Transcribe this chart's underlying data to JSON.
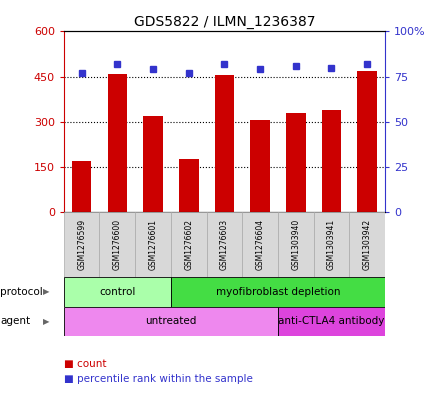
{
  "title": "GDS5822 / ILMN_1236387",
  "samples": [
    "GSM1276599",
    "GSM1276600",
    "GSM1276601",
    "GSM1276602",
    "GSM1276603",
    "GSM1276604",
    "GSM1303940",
    "GSM1303941",
    "GSM1303942"
  ],
  "counts": [
    170,
    460,
    320,
    175,
    455,
    305,
    330,
    340,
    470
  ],
  "percentile_ranks": [
    77,
    82,
    79,
    77,
    82,
    79,
    81,
    80,
    82
  ],
  "ylim_left": [
    0,
    600
  ],
  "ylim_right": [
    0,
    100
  ],
  "yticks_left": [
    0,
    150,
    300,
    450,
    600
  ],
  "ytick_labels_left": [
    "0",
    "150",
    "300",
    "450",
    "600"
  ],
  "yticks_right": [
    0,
    25,
    50,
    75,
    100
  ],
  "ytick_labels_right": [
    "0",
    "25",
    "50",
    "75",
    "100%"
  ],
  "bar_color": "#cc0000",
  "dot_color": "#3333cc",
  "protocol_groups": [
    {
      "label": "control",
      "start": 0,
      "end": 3,
      "color": "#aaffaa"
    },
    {
      "label": "myofibroblast depletion",
      "start": 3,
      "end": 9,
      "color": "#44dd44"
    }
  ],
  "agent_groups": [
    {
      "label": "untreated",
      "start": 0,
      "end": 6,
      "color": "#ee88ee"
    },
    {
      "label": "anti-CTLA4 antibody",
      "start": 6,
      "end": 9,
      "color": "#dd44dd"
    }
  ],
  "legend_count_color": "#cc0000",
  "legend_dot_color": "#3333cc",
  "grid_color": "black",
  "sample_bg_color": "#d8d8d8",
  "sample_edge_color": "#aaaaaa"
}
